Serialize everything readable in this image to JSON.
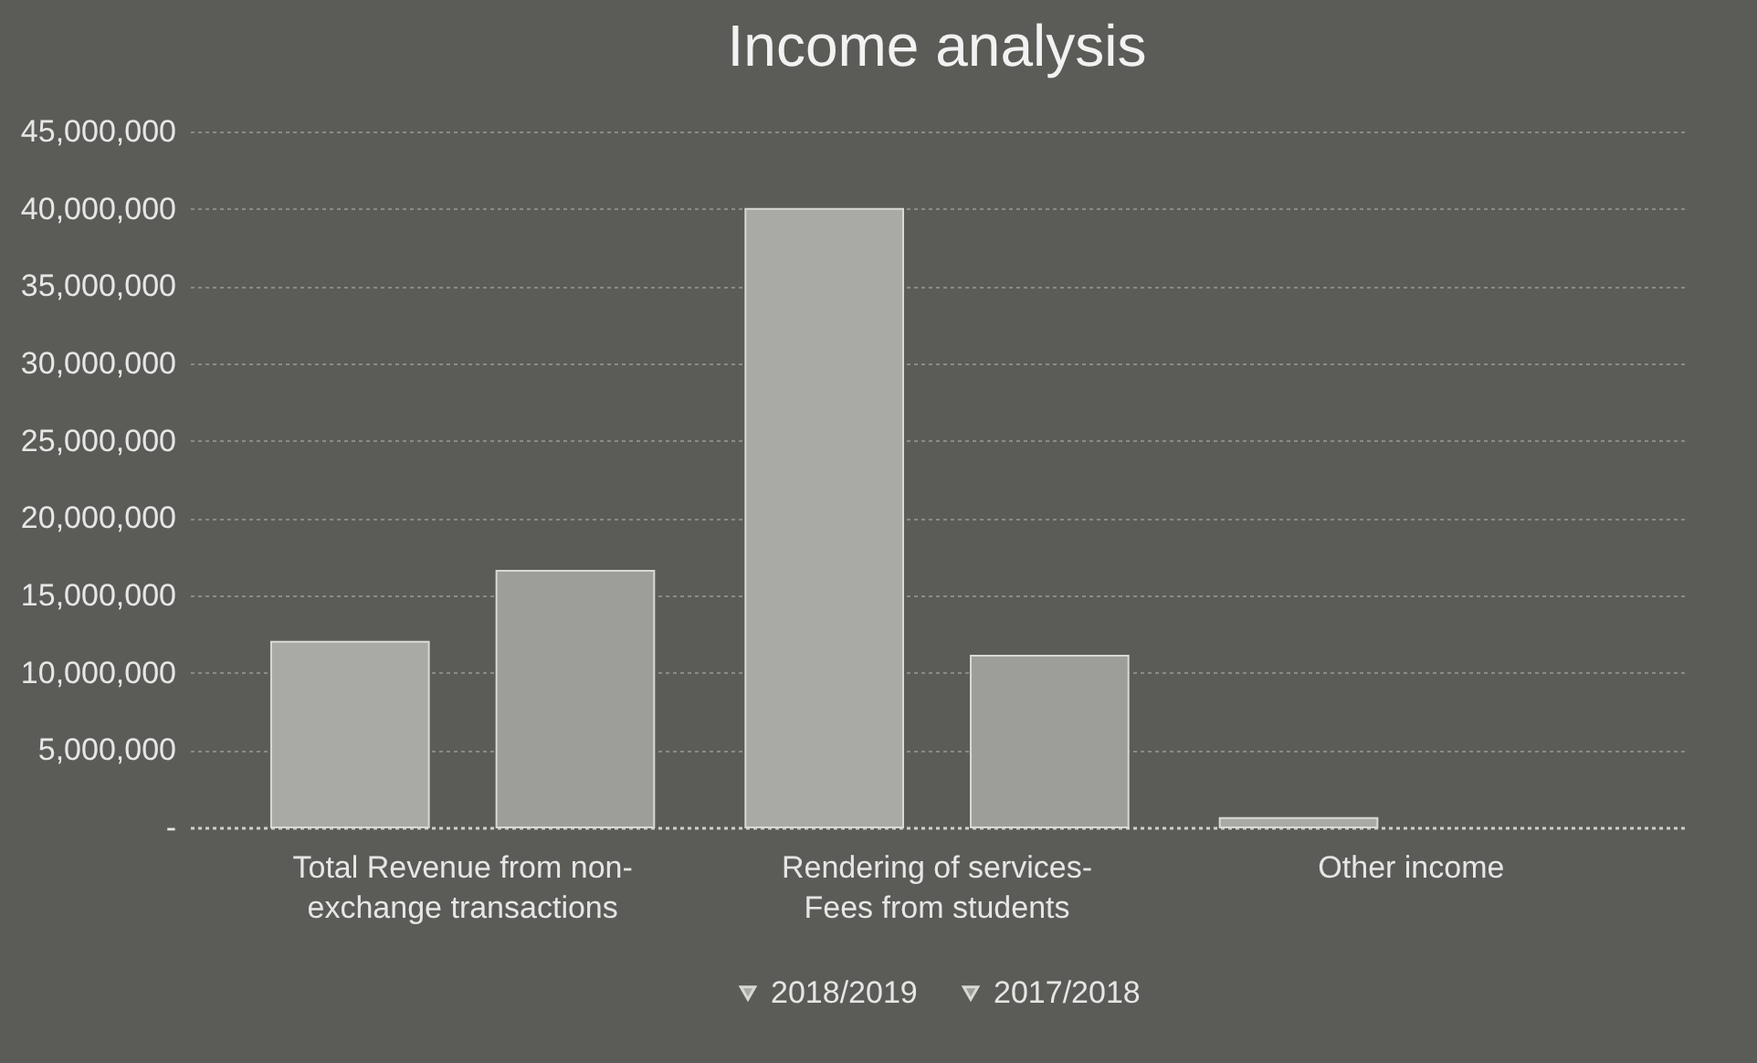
{
  "chart_data": {
    "type": "bar",
    "title": "Income analysis",
    "categories": [
      "Total Revenue from non-exchange transactions",
      "Rendering of services-Fees from students",
      "Other income"
    ],
    "series": [
      {
        "name": "2018/2019",
        "color": "#a9a9a5",
        "values": [
          12000000,
          40000000,
          600000
        ]
      },
      {
        "name": "2017/2018",
        "color": "#9d9d99",
        "values": [
          16600000,
          11100000,
          null
        ]
      }
    ],
    "ylim": [
      0,
      45000000
    ],
    "yticks": [
      {
        "value": 0,
        "label": "-"
      },
      {
        "value": 5000000,
        "label": "5,000,000"
      },
      {
        "value": 10000000,
        "label": "10,000,000"
      },
      {
        "value": 15000000,
        "label": "15,000,000"
      },
      {
        "value": 20000000,
        "label": "20,000,000"
      },
      {
        "value": 25000000,
        "label": "25,000,000"
      },
      {
        "value": 30000000,
        "label": "30,000,000"
      },
      {
        "value": 35000000,
        "label": "35,000,000"
      },
      {
        "value": 40000000,
        "label": "40,000,000"
      },
      {
        "value": 45000000,
        "label": "45,000,000"
      }
    ],
    "grid": "y",
    "legend": "bottom"
  }
}
